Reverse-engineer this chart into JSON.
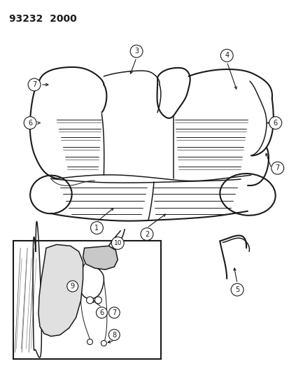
{
  "title_text": "93232  2000",
  "bg_color": "#ffffff",
  "line_color": "#1a1a1a",
  "title_fontsize": 10,
  "fig_width": 4.14,
  "fig_height": 5.33,
  "dpi": 100
}
